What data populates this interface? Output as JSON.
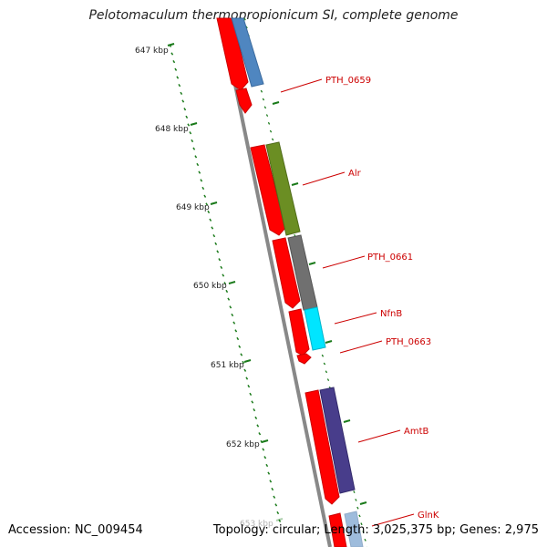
{
  "title": "Pelotomaculum thermopropionicum SI, complete genome",
  "accession": "Accession: NC_009454",
  "summary": "Topology: circular; Length: 3,025,375 bp; Genes: 2,975",
  "scale": {
    "ticks": [
      "647 kbp",
      "648 kbp",
      "649 kbp",
      "650 kbp",
      "651 kbp",
      "652 kbp",
      "653 kbp"
    ]
  },
  "genes": [
    {
      "name": "PTH_0659"
    },
    {
      "name": "Alr"
    },
    {
      "name": "PTH_0661"
    },
    {
      "name": "NfnB"
    },
    {
      "name": "PTH_0663"
    },
    {
      "name": "AmtB"
    },
    {
      "name": "GlnK"
    }
  ],
  "colors": {
    "cds": "#ff0000",
    "backbone": "#888888",
    "tick": "#1a7a1a",
    "label": "#cc0000",
    "blue": "#4f86c0",
    "olive": "#6b8e23",
    "gray": "#707070",
    "cyan": "#00e5ff",
    "purple": "#483d8b"
  }
}
